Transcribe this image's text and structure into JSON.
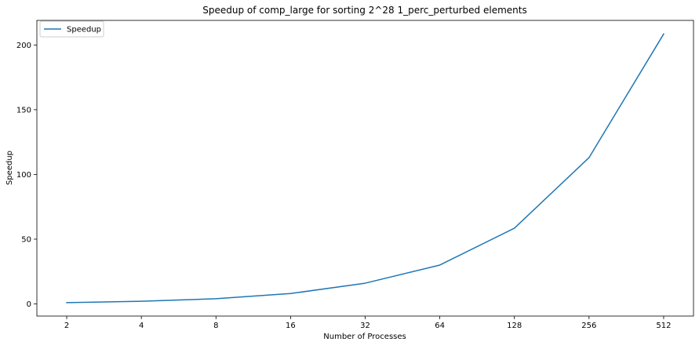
{
  "chart_data": {
    "type": "line",
    "title": "Speedup of comp_large for sorting 2^28 1_perc_perturbed elements",
    "xlabel": "Number of Processes",
    "ylabel": "Speedup",
    "categories": [
      "2",
      "4",
      "8",
      "16",
      "32",
      "64",
      "128",
      "256",
      "512"
    ],
    "series": [
      {
        "name": "Speedup",
        "values": [
          1.0,
          2.0,
          4.0,
          8.0,
          16.0,
          30.0,
          58.5,
          113.0,
          208.5
        ],
        "color": "#1f77b4"
      }
    ],
    "yticks": [
      0,
      50,
      100,
      150,
      200
    ],
    "ylim": [
      -9.4,
      219.0
    ],
    "grid": false,
    "legend": {
      "position": "upper-left"
    }
  }
}
